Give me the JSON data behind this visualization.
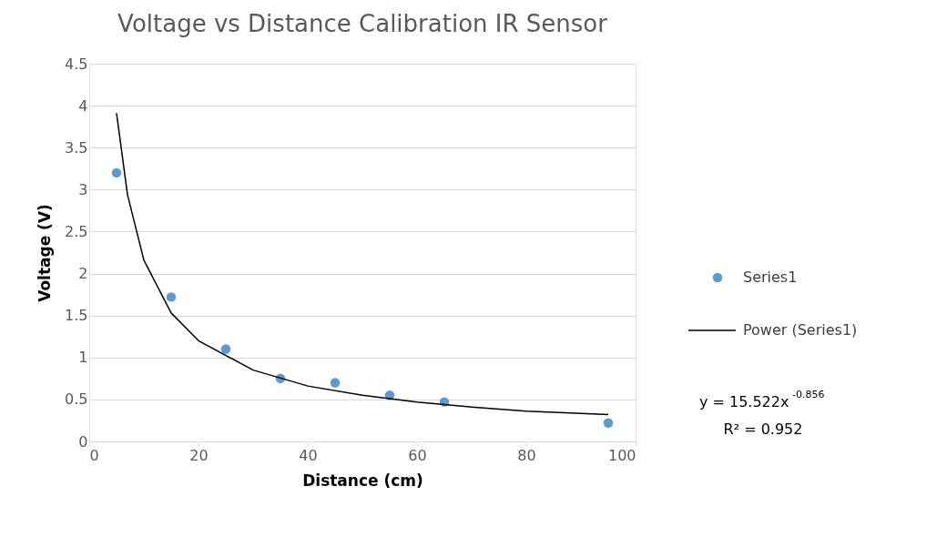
{
  "chart_data": {
    "type": "scatter",
    "title": "Voltage vs Distance Calibration IR Sensor",
    "xlabel": "Distance (cm)",
    "ylabel": "Voltage (V)",
    "series": [
      {
        "name": "Series1",
        "marker": "circle",
        "color": "#5b9bd5",
        "x": [
          5,
          15,
          25,
          35,
          45,
          55,
          65,
          95
        ],
        "values": [
          3.2,
          1.72,
          1.1,
          0.75,
          0.7,
          0.55,
          0.47,
          0.22
        ]
      },
      {
        "name": "Power (Series1)",
        "type": "line",
        "marker": "none",
        "color": "#000000",
        "x": [
          5,
          7,
          10,
          15,
          20,
          30,
          40,
          50,
          60,
          70,
          80,
          95
        ],
        "values": [
          3.91,
          2.94,
          2.16,
          1.53,
          1.2,
          0.85,
          0.66,
          0.55,
          0.47,
          0.41,
          0.36,
          0.32
        ]
      }
    ],
    "xlim": [
      0,
      100
    ],
    "xticks": [
      0,
      20,
      40,
      60,
      80,
      100
    ],
    "ylim": [
      0,
      4.5
    ],
    "yticks": [
      0,
      0.5,
      1,
      1.5,
      2,
      2.5,
      3,
      3.5,
      4,
      4.5
    ],
    "grid": "y",
    "legend": "right",
    "line_style": "solid",
    "annotations": [
      "y = 15.522x$^{-0.856}$",
      "R² = 0.952"
    ]
  }
}
